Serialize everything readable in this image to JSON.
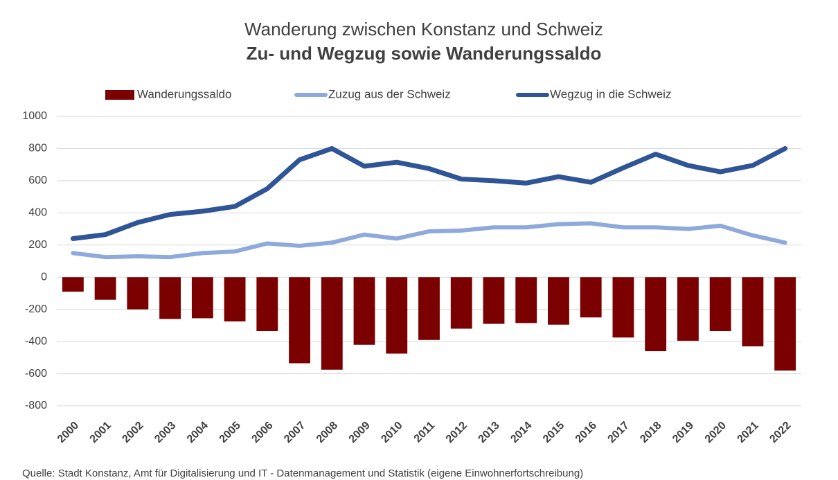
{
  "chart_data": {
    "type": "bar",
    "title": "Wanderung zwischen Konstanz und Schweiz",
    "subtitle": "Zu- und Wegzug sowie Wanderungssaldo",
    "source": "Quelle: Stadt Konstanz, Amt für Digitalisierung und IT - Datenmanagement und Statistik (eigene Einwohnerfortschreibung)",
    "categories": [
      "2000",
      "2001",
      "2002",
      "2003",
      "2004",
      "2005",
      "2006",
      "2007",
      "2008",
      "2009",
      "2010",
      "2011",
      "2012",
      "2013",
      "2014",
      "2015",
      "2016",
      "2017",
      "2018",
      "2019",
      "2020",
      "2021",
      "2022"
    ],
    "series": [
      {
        "name": "Wanderungssaldo",
        "type": "bar",
        "color": "#7b0000",
        "values": [
          -90,
          -140,
          -200,
          -260,
          -255,
          -275,
          -335,
          -535,
          -575,
          -420,
          -475,
          -390,
          -320,
          -290,
          -285,
          -295,
          -250,
          -375,
          -460,
          -395,
          -335,
          -430,
          -580
        ]
      },
      {
        "name": "Zuzug aus der Schweiz",
        "type": "line",
        "color": "#8eaadb",
        "values": [
          150,
          125,
          130,
          125,
          150,
          160,
          210,
          195,
          215,
          265,
          240,
          285,
          290,
          310,
          310,
          330,
          335,
          310,
          310,
          300,
          320,
          260,
          215
        ]
      },
      {
        "name": "Wegzug in die Schweiz",
        "type": "line",
        "color": "#2f5597",
        "values": [
          240,
          265,
          340,
          390,
          410,
          440,
          550,
          730,
          800,
          690,
          715,
          675,
          610,
          600,
          585,
          625,
          590,
          680,
          765,
          695,
          655,
          695,
          800
        ]
      }
    ],
    "ylim": [
      -800,
      1000
    ],
    "yticks": [
      -800,
      -600,
      -400,
      -200,
      0,
      200,
      400,
      600,
      800,
      1000
    ],
    "grid": true,
    "legend": "top"
  }
}
